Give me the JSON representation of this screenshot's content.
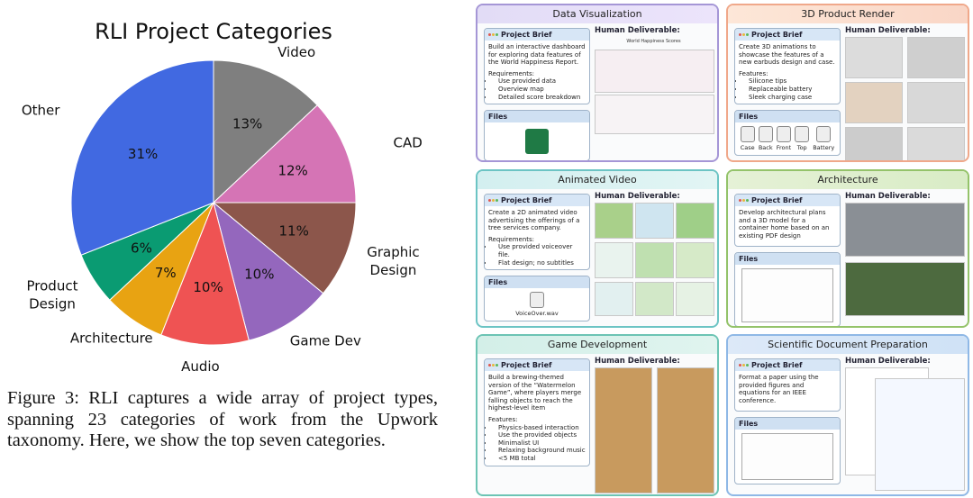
{
  "chart_data": {
    "type": "pie",
    "title": "RLI Project Categories",
    "categories": [
      "Video",
      "CAD",
      "Graphic Design",
      "Game Dev",
      "Audio",
      "Architecture",
      "Product Design",
      "Other"
    ],
    "values": [
      13,
      12,
      11,
      10,
      10,
      7,
      6,
      31
    ],
    "value_labels": [
      "13%",
      "12%",
      "11%",
      "10%",
      "10%",
      "7%",
      "6%",
      "31%"
    ],
    "colors": [
      "#7f7f7f",
      "#d574b5",
      "#8c564b",
      "#9467bd",
      "#ef5353",
      "#e8a312",
      "#0a9b72",
      "#4169e1"
    ]
  },
  "caption": "Figure 3: RLI captures a wide array of project types, spanning 23 categories of work from the Upwork taxonomy. Here, we show the top seven categories.",
  "panels": [
    {
      "title": "Data Visualization",
      "brief_label": "Project Brief",
      "brief": "Build an interactive dashboard for exploring data features of the World Happiness Report.",
      "list_label": "Requirements:",
      "items": [
        "Use provided data",
        "Overview map",
        "Detailed score breakdown"
      ],
      "deliverable_label": "Human Deliverable:",
      "deliverable_caption": "World Happiness Scores",
      "files_label": "Files"
    },
    {
      "title": "3D Product Render",
      "brief_label": "Project Brief",
      "brief": "Create 3D animations to showcase the features of a new earbuds design and case.",
      "list_label": "Features:",
      "items": [
        "Silicone tips",
        "Replaceable battery",
        "Sleek charging case"
      ],
      "deliverable_label": "Human Deliverable:",
      "files_label": "Files",
      "files": [
        "Case",
        "Back",
        "Front",
        "Top",
        "Battery"
      ]
    },
    {
      "title": "Animated Video",
      "brief_label": "Project Brief",
      "brief": "Create a 2D animated video advertising the offerings of a tree services company.",
      "list_label": "Requirements:",
      "items": [
        "Use provided voiceover file.",
        "Flat design; no subtitles"
      ],
      "deliverable_label": "Human Deliverable:",
      "files_label": "Files",
      "files": [
        "VoiceOver.wav"
      ]
    },
    {
      "title": "Architecture",
      "brief_label": "Project Brief",
      "brief": "Develop architectural plans and a 3D model for a container home based on an existing PDF design",
      "deliverable_label": "Human Deliverable:",
      "files_label": "Files"
    },
    {
      "title": "Game Development",
      "brief_label": "Project Brief",
      "brief": "Build a brewing-themed version of the “Watermelon Game”, where players merge falling objects to reach the highest-level item",
      "list_label": "Features:",
      "items": [
        "Physics-based interaction",
        "Use the provided objects",
        "Minimalist UI",
        "Relaxing background music",
        "<5 MB total"
      ],
      "deliverable_label": "Human Deliverable:"
    },
    {
      "title": "Scientific Document Preparation",
      "brief_label": "Project Brief",
      "brief": "Format a paper using the provided figures and equations for an IEEE conference.",
      "deliverable_label": "Human Deliverable:",
      "files_label": "Files"
    }
  ]
}
